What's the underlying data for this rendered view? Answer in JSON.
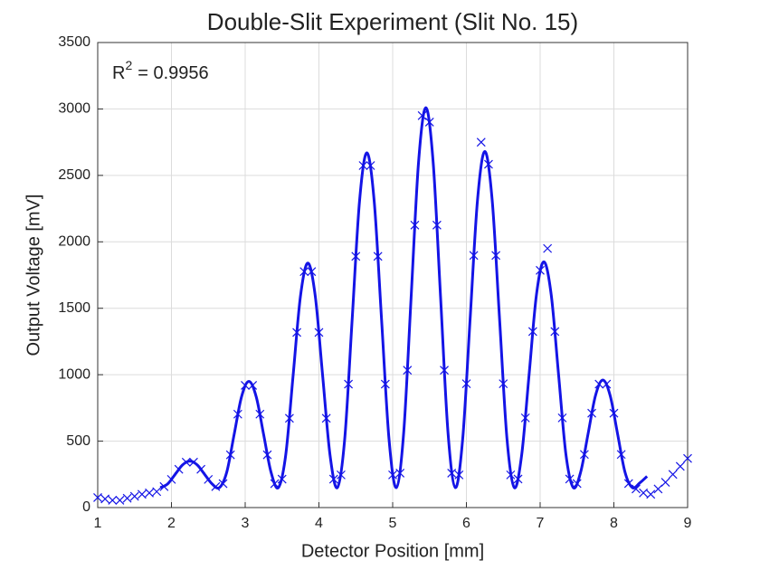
{
  "chart_data": {
    "type": "scatter",
    "title": "Double-Slit Experiment (Slit No. 15)",
    "x_label": "Detector Position [mm]",
    "y_label": "Output Voltage [mV]",
    "annotation": {
      "symbol": "R",
      "exponent": "2",
      "text": "= 0.9956"
    },
    "xlim": [
      1,
      9
    ],
    "xticks": [
      1,
      2,
      3,
      4,
      5,
      6,
      7,
      8,
      9
    ],
    "ylim": [
      0,
      3500
    ],
    "yticks": [
      0,
      500,
      1000,
      1500,
      2000,
      2500,
      3000,
      3500
    ],
    "grid": true,
    "series": [
      {
        "style": "markers",
        "color": "#1414e6",
        "x": [
          1.0,
          1.1,
          1.2,
          1.3,
          1.4,
          1.5,
          1.6,
          1.7,
          1.8,
          1.9,
          2.0,
          2.1,
          2.2,
          2.3,
          2.4,
          2.5,
          2.6,
          2.7,
          2.8,
          2.9,
          3.0,
          3.1,
          3.2,
          3.3,
          3.4,
          3.5,
          3.6,
          3.7,
          3.8,
          3.9,
          4.0,
          4.1,
          4.2,
          4.3,
          4.4,
          4.5,
          4.6,
          4.7,
          4.8,
          4.9,
          5.0,
          5.1,
          5.2,
          5.3,
          5.4,
          5.5,
          5.6,
          5.7,
          5.8,
          5.9,
          6.0,
          6.1,
          6.2,
          6.3,
          6.4,
          6.5,
          6.6,
          6.7,
          6.8,
          6.9,
          7.0,
          7.1,
          7.2,
          7.3,
          7.4,
          7.5,
          7.6,
          7.7,
          7.8,
          7.9,
          8.0,
          8.1,
          8.2,
          8.3,
          8.4,
          8.5,
          8.6,
          8.7,
          8.8,
          8.9,
          9.0
        ],
        "values": [
          75,
          65,
          55,
          55,
          70,
          85,
          100,
          110,
          120,
          158,
          212,
          288,
          342,
          342,
          288,
          212,
          158,
          180,
          397,
          703,
          920,
          920,
          703,
          397,
          180,
          214,
          672,
          1318,
          1776,
          1776,
          1318,
          672,
          214,
          246,
          929,
          1891,
          2574,
          2574,
          1891,
          929,
          246,
          259,
          1034,
          2126,
          2950,
          2901,
          2126,
          1034,
          259,
          246,
          932,
          1898,
          2750,
          2584,
          1898,
          932,
          246,
          215,
          675,
          1325,
          1785,
          1950,
          1325,
          675,
          215,
          181,
          400,
          710,
          929,
          929,
          710,
          400,
          181,
          140,
          110,
          100,
          140,
          190,
          250,
          310,
          370
        ]
      },
      {
        "style": "line",
        "color": "#1414e6",
        "x": [
          1.85,
          1.95,
          2.05,
          2.15,
          2.25,
          2.35,
          2.45,
          2.55,
          2.65,
          2.75,
          2.85,
          2.95,
          3.05,
          3.15,
          3.25,
          3.35,
          3.45,
          3.55,
          3.65,
          3.75,
          3.85,
          3.95,
          4.05,
          4.15,
          4.25,
          4.35,
          4.45,
          4.55,
          4.65,
          4.75,
          4.85,
          4.95,
          5.05,
          5.15,
          5.25,
          5.35,
          5.45,
          5.55,
          5.65,
          5.75,
          5.85,
          5.95,
          6.05,
          6.15,
          6.25,
          6.35,
          6.45,
          6.55,
          6.65,
          6.75,
          6.85,
          6.95,
          7.05,
          7.15,
          7.25,
          7.35,
          7.45,
          7.55,
          7.65,
          7.75,
          7.85,
          7.95,
          8.05,
          8.15,
          8.25,
          8.35,
          8.45
        ],
        "values": [
          150,
          179,
          250,
          321,
          350,
          321,
          250,
          179,
          150,
          267,
          550,
          833,
          950,
          833,
          550,
          267,
          150,
          397,
          995,
          1593,
          1840,
          1593,
          995,
          397,
          150,
          518,
          1410,
          2302,
          2670,
          2302,
          1410,
          518,
          150,
          568,
          1580,
          2592,
          3010,
          2592,
          1580,
          568,
          150,
          519,
          1415,
          2311,
          2680,
          2311,
          1415,
          519,
          150,
          398,
          1000,
          1602,
          1850,
          1602,
          1000,
          398,
          150,
          268,
          555,
          842,
          960,
          842,
          555,
          268,
          150,
          185,
          235
        ]
      }
    ]
  }
}
